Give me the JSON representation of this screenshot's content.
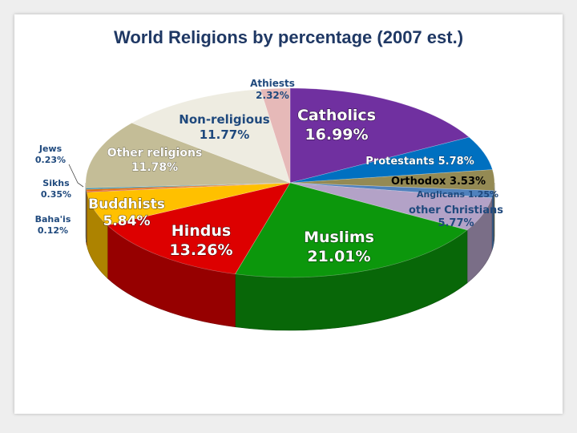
{
  "chart_data": {
    "type": "pie",
    "title": "World Religions by percentage (2007 est.)",
    "unit": "%",
    "slices": [
      {
        "name": "Catholics",
        "display": "Catholics",
        "value": 16.99,
        "color": "#7030a0",
        "label_color": "#ffffff"
      },
      {
        "name": "Protestants",
        "display": "Protestants 5.78%",
        "value": 5.78,
        "color": "#0070c0",
        "label_color": "#ffffff"
      },
      {
        "name": "Orthodox",
        "display": "Orthodox 3.53%",
        "value": 3.53,
        "color": "#948a54",
        "label_color": "#000000"
      },
      {
        "name": "Anglicans",
        "display": "Anglicans 1.25%",
        "value": 1.25,
        "color": "#4f81bd",
        "label_color": "#1f497d"
      },
      {
        "name": "other Christians",
        "display": "other Christians",
        "value": 5.77,
        "color": "#b3a2c7",
        "label_color": "#1f497d"
      },
      {
        "name": "Muslims",
        "display": "Muslims",
        "value": 21.01,
        "color": "#0c970c",
        "label_color": "#ffffff"
      },
      {
        "name": "Hindus",
        "display": "Hindus",
        "value": 13.26,
        "color": "#dd0000",
        "label_color": "#ffffff"
      },
      {
        "name": "Buddhists",
        "display": "Buddhists",
        "value": 5.84,
        "color": "#ffc000",
        "label_color": "#ffffff"
      },
      {
        "name": "Baha'is",
        "display": "Baha'is",
        "value": 0.12,
        "color": "#c00000",
        "label_color": "#1f497d"
      },
      {
        "name": "Sikhs",
        "display": "Sikhs",
        "value": 0.35,
        "color": "#e46c0a",
        "label_color": "#1f497d"
      },
      {
        "name": "Jews",
        "display": "Jews",
        "value": 0.23,
        "color": "#31859c",
        "label_color": "#1f497d"
      },
      {
        "name": "Other religions",
        "display": "Other religions",
        "value": 11.78,
        "color": "#c4bd97",
        "label_color": "#ffffff"
      },
      {
        "name": "Non-religious",
        "display": "Non-religious",
        "value": 11.77,
        "color": "#eeece1",
        "label_color": "#1f497d"
      },
      {
        "name": "Athiests",
        "display": "Athiests",
        "value": 2.32,
        "color": "#e6b9b8",
        "label_color": "#1f497d"
      }
    ],
    "labels": [
      {
        "slice": "Catholics",
        "line1": "Catholics",
        "line2": "16.99%",
        "size": 19,
        "color": "#ffffff",
        "stroke": true
      },
      {
        "slice": "Protestants",
        "line1": "Protestants 5.78%",
        "line2": "",
        "size": 13,
        "color": "#ffffff",
        "stroke": true
      },
      {
        "slice": "Orthodox",
        "line1": "Orthodox 3.53%",
        "line2": "",
        "size": 13,
        "color": "#000000",
        "stroke": false
      },
      {
        "slice": "Anglicans",
        "line1": "Anglicans 1.25%",
        "line2": "",
        "size": 11,
        "color": "#1f497d",
        "stroke": false
      },
      {
        "slice": "other Christians",
        "line1": "other Christians",
        "line2": "5.77%",
        "size": 13,
        "color": "#1f497d",
        "stroke": false
      },
      {
        "slice": "Muslims",
        "line1": "Muslims",
        "line2": "21.01%",
        "size": 19,
        "color": "#ffffff",
        "stroke": true
      },
      {
        "slice": "Hindus",
        "line1": "Hindus",
        "line2": "13.26%",
        "size": 19,
        "color": "#ffffff",
        "stroke": true
      },
      {
        "slice": "Buddhists",
        "line1": "Buddhists",
        "line2": "5.84%",
        "size": 17,
        "color": "#ffffff",
        "stroke": true
      },
      {
        "slice": "Baha'is",
        "line1": "Baha'is",
        "line2": "0.12%",
        "size": 11,
        "color": "#1f497d",
        "stroke": false
      },
      {
        "slice": "Sikhs",
        "line1": "Sikhs",
        "line2": "0.35%",
        "size": 11,
        "color": "#1f497d",
        "stroke": false
      },
      {
        "slice": "Jews",
        "line1": "Jews",
        "line2": "0.23%",
        "size": 11,
        "color": "#1f497d",
        "stroke": false
      },
      {
        "slice": "Other religions",
        "line1": "Other religions",
        "line2": "11.78%",
        "size": 14,
        "color": "#ffffff",
        "stroke": true
      },
      {
        "slice": "Non-religious",
        "line1": "Non-religious",
        "line2": "11.77%",
        "size": 15,
        "color": "#1f497d",
        "stroke": false
      },
      {
        "slice": "Athiests",
        "line1": "Athiests",
        "line2": "2.32%",
        "size": 12,
        "color": "#1f497d",
        "stroke": false
      }
    ],
    "style": "3d-pie",
    "legend": "none"
  }
}
